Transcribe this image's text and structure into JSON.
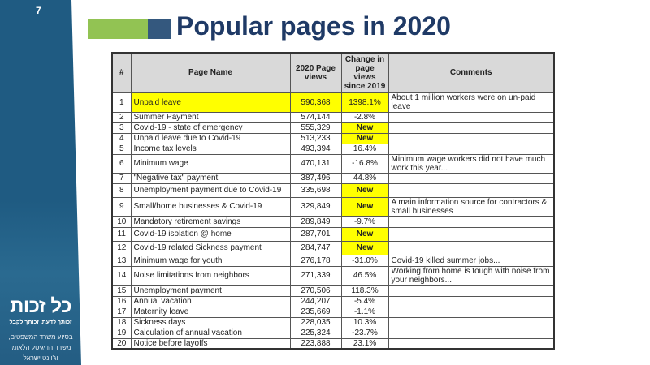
{
  "slide_number": "7",
  "title": "Popular pages in 2020",
  "logo": {
    "text": "כל זכות",
    "tagline": "זכותך לדעת, זכותך לקבל"
  },
  "support_lines": [
    "בסיוע משרד המשפטים,",
    "משרד הדיגיטל הלאומי",
    "וג'וינט ישראל"
  ],
  "colors": {
    "sidebar": "#1f5b82",
    "accent_green": "#92c353",
    "accent_blue": "#34587e",
    "title": "#1f3a66",
    "highlight": "#ffff00"
  },
  "table": {
    "headers": [
      "#",
      "Page Name",
      "2020 Page views",
      "Change in page views since 2019",
      "Comments"
    ],
    "rows": [
      {
        "n": "1",
        "name": "Unpaid leave",
        "views": "590,368",
        "change": "1398.1%",
        "comment": "About 1 million workers were on un-paid leave",
        "hl": true,
        "h": 24
      },
      {
        "n": "2",
        "name": "Summer Payment",
        "views": "574,144",
        "change": "-2.8%",
        "comment": "",
        "h": 13
      },
      {
        "n": "3",
        "name": "Covid-19 - state of emergency",
        "views": "555,329",
        "change": "New",
        "comment": "",
        "h": 13
      },
      {
        "n": "4",
        "name": "Unpaid leave due to Covid-19",
        "views": "513,233",
        "change": "New",
        "comment": "",
        "h": 13
      },
      {
        "n": "5",
        "name": "Income tax levels",
        "views": "493,394",
        "change": "16.4%",
        "comment": "",
        "h": 13
      },
      {
        "n": "6",
        "name": "Minimum wage",
        "views": "470,131",
        "change": "-16.8%",
        "comment": "Minimum wage workers did not have much work this year...",
        "h": 23
      },
      {
        "n": "7",
        "name": "\"Negative tax\" payment",
        "views": "387,496",
        "change": "44.8%",
        "comment": "",
        "h": 13
      },
      {
        "n": "8",
        "name": "Unemployment payment  due to Covid-19",
        "views": "335,698",
        "change": "New",
        "comment": "",
        "h": 17
      },
      {
        "n": "9",
        "name": "Small/home businesses & Covid-19",
        "views": "329,849",
        "change": "New",
        "comment": "A main information source for contractors & small businesses",
        "h": 23
      },
      {
        "n": "10",
        "name": "Mandatory retirement savings",
        "views": "289,849",
        "change": "-9.7%",
        "comment": "",
        "h": 14
      },
      {
        "n": "11",
        "name": "Covid-19 isolation @ home",
        "views": "287,701",
        "change": "New",
        "comment": "",
        "h": 17
      },
      {
        "n": "12",
        "name": "Covid-19 related Sickness payment",
        "views": "284,747",
        "change": "New",
        "comment": "",
        "h": 17
      },
      {
        "n": "13",
        "name": "Minimum wage for youth",
        "views": "276,178",
        "change": "-31.0%",
        "comment": "Covid-19 killed summer jobs...",
        "h": 14
      },
      {
        "n": "14",
        "name": "Noise limitations from neighbors",
        "views": "271,339",
        "change": "46.5%",
        "comment": "Working from home is tough with noise from your neighbors...",
        "h": 23
      },
      {
        "n": "15",
        "name": "Unemployment payment",
        "views": "270,506",
        "change": "118.3%",
        "comment": "",
        "h": 14
      },
      {
        "n": "16",
        "name": "Annual vacation",
        "views": "244,207",
        "change": "-5.4%",
        "comment": "",
        "h": 13
      },
      {
        "n": "17",
        "name": "Maternity leave",
        "views": "235,669",
        "change": "-1.1%",
        "comment": "",
        "h": 13
      },
      {
        "n": "18",
        "name": "Sickness days",
        "views": "228,035",
        "change": "10.3%",
        "comment": "",
        "h": 13
      },
      {
        "n": "19",
        "name": "Calculation of annual vacation",
        "views": "225,324",
        "change": "-23.7%",
        "comment": "",
        "h": 13
      },
      {
        "n": "20",
        "name": "Notice before layoffs",
        "views": "223,888",
        "change": "23.1%",
        "comment": "",
        "h": 13
      }
    ]
  }
}
